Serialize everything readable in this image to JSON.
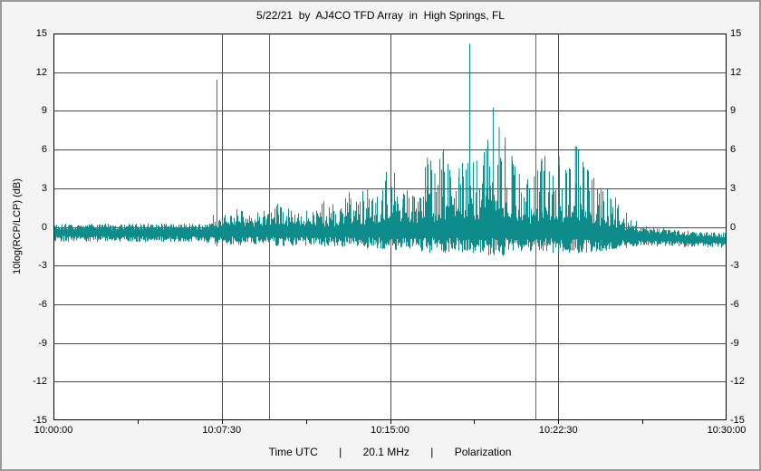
{
  "window": {
    "background": "#f4f4f4",
    "border_color": "#9a9a9a",
    "plot_background": "#ffffff",
    "grid_color": "#4a4a4a",
    "frame_color": "#000000"
  },
  "title": "5/22/21  by  AJ4CO TFD Array  in  High Springs, FL",
  "y_axis_title": "10log(RCP/LCP) (dB)",
  "x_caption": "Time UTC       |       20.1 MHz       |       Polarization",
  "chart_data": {
    "type": "line",
    "title": "5/22/21 by AJ4CO TFD Array in High Springs, FL",
    "xlabel": "Time UTC",
    "frequency_label": "20.1 MHz",
    "polarization_label": "Polarization",
    "ylabel": "10log(RCP/LCP) (dB)",
    "ylim": [
      -15,
      15
    ],
    "y_tick_step": 3,
    "y_ticks": [
      15,
      12,
      9,
      6,
      3,
      0,
      -3,
      -6,
      -9,
      -12,
      -15
    ],
    "duration_s": 1800,
    "x_ticks": [
      {
        "label": "10:00:00",
        "t": 0
      },
      {
        "label": "10:07:30",
        "t": 450
      },
      {
        "label": "10:15:00",
        "t": 900
      },
      {
        "label": "10:22:30",
        "t": 1350
      },
      {
        "label": "10:30:00",
        "t": 1800
      }
    ],
    "x_gridline_times": [
      450,
      900,
      1350
    ],
    "x_minor_tick_every_s": 225,
    "series_color": "#0e8b8b",
    "series_name": "10log(RCP/LCP)",
    "baseline_dB": [
      [
        0,
        -0.45
      ],
      [
        700,
        -0.5
      ],
      [
        1200,
        -0.55
      ],
      [
        1500,
        -0.7
      ],
      [
        1700,
        -0.95
      ],
      [
        1800,
        -1.05
      ]
    ],
    "noise_halfwidth_dB": [
      [
        0,
        0.7
      ],
      [
        500,
        0.75
      ],
      [
        900,
        0.85
      ],
      [
        1450,
        0.8
      ],
      [
        1600,
        0.65
      ],
      [
        1800,
        0.6
      ]
    ],
    "burst_envelope_dB_above_baseline": [
      [
        0,
        0
      ],
      [
        415,
        0
      ],
      [
        430,
        1.0
      ],
      [
        455,
        0.8
      ],
      [
        475,
        1.0
      ],
      [
        500,
        1.6
      ],
      [
        525,
        1.1
      ],
      [
        550,
        1.2
      ],
      [
        585,
        1.3
      ],
      [
        600,
        2.3
      ],
      [
        625,
        1.6
      ],
      [
        650,
        1.5
      ],
      [
        680,
        1.4
      ],
      [
        715,
        1.9
      ],
      [
        745,
        1.6
      ],
      [
        775,
        2.0
      ],
      [
        795,
        2.7
      ],
      [
        815,
        2.1
      ],
      [
        840,
        3.5
      ],
      [
        862,
        2.4
      ],
      [
        888,
        4.1
      ],
      [
        912,
        4.7
      ],
      [
        935,
        2.7
      ],
      [
        962,
        2.9
      ],
      [
        1000,
        5.9
      ],
      [
        1020,
        4.7
      ],
      [
        1042,
        6.3
      ],
      [
        1062,
        4.4
      ],
      [
        1085,
        5.1
      ],
      [
        1108,
        5.5
      ],
      [
        1132,
        5.7
      ],
      [
        1158,
        6.6
      ],
      [
        1176,
        9.8
      ],
      [
        1192,
        8.3
      ],
      [
        1208,
        7.5
      ],
      [
        1226,
        6.1
      ],
      [
        1246,
        4.7
      ],
      [
        1266,
        3.9
      ],
      [
        1286,
        4.5
      ],
      [
        1306,
        5.9
      ],
      [
        1326,
        4.9
      ],
      [
        1352,
        6.1
      ],
      [
        1372,
        4.7
      ],
      [
        1396,
        6.9
      ],
      [
        1416,
        5.7
      ],
      [
        1440,
        4.3
      ],
      [
        1464,
        3.7
      ],
      [
        1490,
        2.9
      ],
      [
        1515,
        2.1
      ],
      [
        1545,
        1.3
      ],
      [
        1575,
        0.7
      ],
      [
        1610,
        0.3
      ],
      [
        1650,
        0.1
      ],
      [
        1800,
        0
      ]
    ],
    "interference_spikes": [
      {
        "t": 437,
        "top_dB": 11.4,
        "bottom_dB": -1.5
      },
      {
        "t": 576,
        "top_dB": 15,
        "bottom_dB": -15
      },
      {
        "t": 1113,
        "top_dB": 14.2,
        "bottom_dB": -1.8
      },
      {
        "t": 1290,
        "top_dB": 15,
        "bottom_dB": -15
      }
    ]
  }
}
